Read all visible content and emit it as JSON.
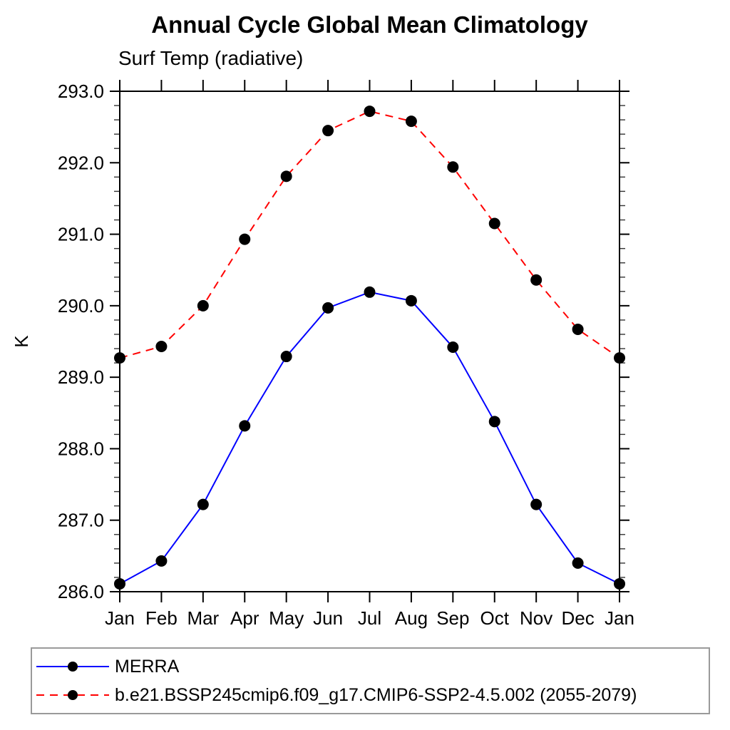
{
  "page": {
    "title": "Annual Cycle Global Mean Climatology",
    "subtitle": "Surf Temp (radiative)"
  },
  "chart_data": {
    "type": "line",
    "title": "Annual Cycle Global Mean Climatology",
    "subtitle": "Surf Temp (radiative)",
    "xlabel": "",
    "ylabel": "K",
    "categories": [
      "Jan",
      "Feb",
      "Mar",
      "Apr",
      "May",
      "Jun",
      "Jul",
      "Aug",
      "Sep",
      "Oct",
      "Nov",
      "Dec",
      "Jan"
    ],
    "ylim": [
      286.0,
      293.0
    ],
    "ytick_step": 1.0,
    "yminor_step": 0.2,
    "ytick_labels": [
      "286.0",
      "287.0",
      "288.0",
      "289.0",
      "290.0",
      "291.0",
      "292.0",
      "293.0"
    ],
    "grid": false,
    "legend_position": "bottom-left",
    "frame_color": "#000000",
    "marker": "filled-circle",
    "marker_color": "#000000",
    "series": [
      {
        "name": "MERRA",
        "color": "#0000ff",
        "line_style": "solid",
        "values": [
          286.11,
          286.43,
          287.22,
          288.32,
          289.29,
          289.97,
          290.19,
          290.07,
          289.42,
          288.38,
          287.22,
          286.4,
          286.11
        ]
      },
      {
        "name": "b.e21.BSSP245cmip6.f09_g17.CMIP6-SSP2-4.5.002 (2055-2079)",
        "color": "#ff0000",
        "line_style": "dashed",
        "values": [
          289.27,
          289.43,
          290.0,
          290.93,
          291.81,
          292.45,
          292.72,
          292.58,
          291.94,
          291.15,
          290.36,
          289.67,
          289.27
        ]
      }
    ]
  }
}
